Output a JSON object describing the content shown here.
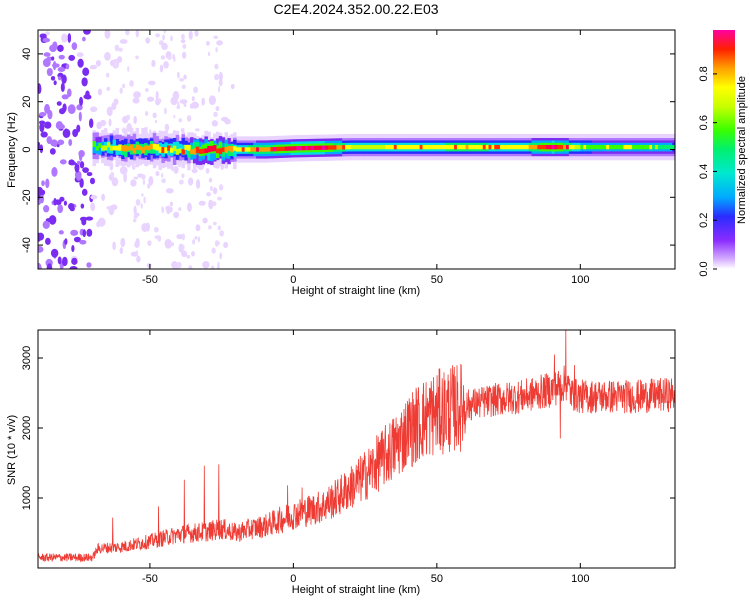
{
  "title": "C2E4.2024.352.00.22.E03",
  "colors": {
    "snr_line": "#ee3b33",
    "spectral_low": "#ffffff",
    "colormap": [
      "#ffffff",
      "#e8d4ff",
      "#b078ff",
      "#7a2cf0",
      "#2a2cff",
      "#00aaff",
      "#00e0e0",
      "#00f070",
      "#38ff00",
      "#c8ff00",
      "#ffff00",
      "#ffa000",
      "#ff3000",
      "#ff0040",
      "#ff00a0"
    ]
  },
  "chart_data": [
    {
      "type": "heatmap",
      "title": "C2E4.2024.352.00.22.E03",
      "xlabel": "Height of straight line (km)",
      "ylabel": "Frequency (Hz)",
      "xlim": [
        -89,
        133
      ],
      "ylim": [
        -50,
        50
      ],
      "xticks": [
        "-50",
        "0",
        "50",
        "100"
      ],
      "yticks": [
        "-40",
        "-20",
        "0",
        "20",
        "40"
      ],
      "description_values": {
        "band_center_hz": [
          [
            -70,
            1.5
          ],
          [
            -60,
            0.5
          ],
          [
            -50,
            0.5
          ],
          [
            -40,
            0.0
          ],
          [
            -30,
            0.0
          ],
          [
            -20,
            0.0
          ],
          [
            -10,
            0.0
          ],
          [
            0,
            0.5
          ],
          [
            20,
            1.0
          ],
          [
            40,
            1.0
          ],
          [
            60,
            1.0
          ],
          [
            80,
            1.0
          ],
          [
            90,
            1.0
          ],
          [
            100,
            1.0
          ],
          [
            120,
            1.0
          ],
          [
            133,
            1.0
          ]
        ],
        "band_amplitude": [
          [
            -70,
            0.55
          ],
          [
            -60,
            0.75
          ],
          [
            -50,
            0.75
          ],
          [
            -40,
            0.65
          ],
          [
            -30,
            0.95
          ],
          [
            -20,
            0.7
          ],
          [
            -10,
            0.8
          ],
          [
            0,
            0.95
          ],
          [
            10,
            0.95
          ],
          [
            20,
            0.65
          ],
          [
            40,
            0.7
          ],
          [
            60,
            0.75
          ],
          [
            80,
            0.7
          ],
          [
            90,
            0.95
          ],
          [
            100,
            0.6
          ],
          [
            120,
            0.55
          ],
          [
            133,
            0.5
          ]
        ]
      },
      "colorbar": {
        "label": "Normalized spectral amplitude",
        "ticks": [
          "0.0",
          "0.2",
          "0.4",
          "0.6",
          "0.8"
        ],
        "range": [
          0,
          0.98
        ]
      }
    },
    {
      "type": "line",
      "xlabel": "Height of straight line (km)",
      "ylabel": "SNR (10 * v/v)",
      "xlim": [
        -89,
        133
      ],
      "ylim": [
        0,
        3400
      ],
      "xticks": [
        "-50",
        "0",
        "50",
        "100"
      ],
      "yticks": [
        "1000",
        "2000",
        "3000"
      ],
      "trend": [
        [
          -89,
          150
        ],
        [
          -70,
          150
        ],
        [
          -68,
          280
        ],
        [
          -60,
          300
        ],
        [
          -50,
          380
        ],
        [
          -40,
          480
        ],
        [
          -30,
          520
        ],
        [
          -25,
          560
        ],
        [
          -20,
          500
        ],
        [
          -15,
          560
        ],
        [
          -10,
          600
        ],
        [
          -5,
          680
        ],
        [
          0,
          760
        ],
        [
          5,
          820
        ],
        [
          10,
          880
        ],
        [
          15,
          1000
        ],
        [
          20,
          1150
        ],
        [
          25,
          1320
        ],
        [
          30,
          1520
        ],
        [
          35,
          1720
        ],
        [
          40,
          1950
        ],
        [
          45,
          2120
        ],
        [
          50,
          2220
        ],
        [
          60,
          2320
        ],
        [
          70,
          2400
        ],
        [
          80,
          2450
        ],
        [
          85,
          2500
        ],
        [
          90,
          2550
        ],
        [
          93,
          2600
        ],
        [
          95,
          2650
        ],
        [
          97,
          2480
        ],
        [
          100,
          2450
        ],
        [
          110,
          2450
        ],
        [
          120,
          2450
        ],
        [
          133,
          2480
        ]
      ],
      "spikes": [
        [
          -63,
          720
        ],
        [
          -47,
          880
        ],
        [
          -38,
          1260
        ],
        [
          -31,
          1460
        ],
        [
          -26,
          1480
        ],
        [
          -2,
          1180
        ],
        [
          3,
          1150
        ],
        [
          30,
          1800
        ],
        [
          40,
          2150
        ],
        [
          91,
          3050
        ],
        [
          95,
          3400
        ],
        [
          93,
          1850
        ],
        [
          98,
          2900
        ]
      ]
    }
  ]
}
